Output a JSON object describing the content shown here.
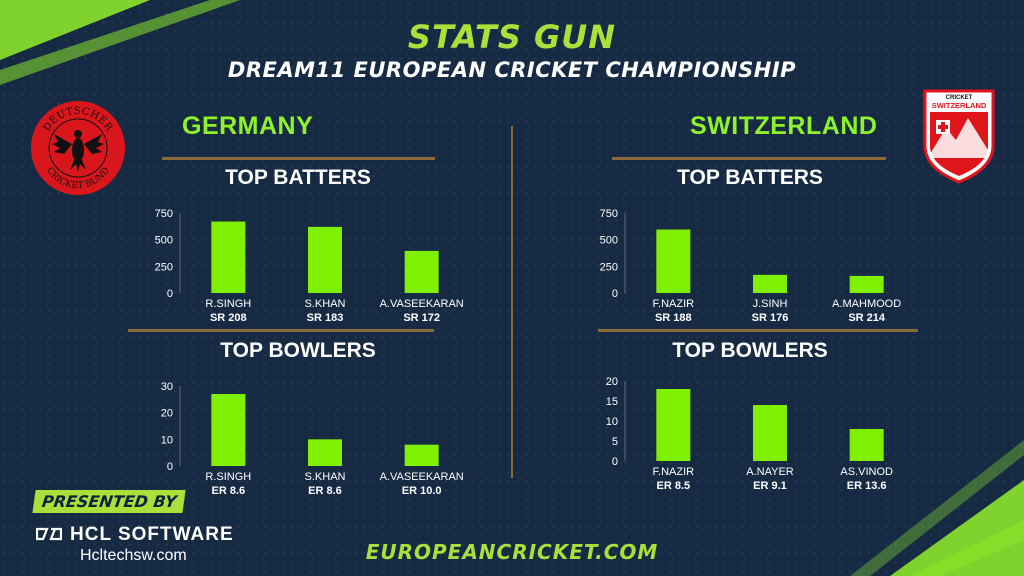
{
  "header": {
    "title": "STATS GUN",
    "subtitle": "DREAM11 EUROPEAN CRICKET CHAMPIONSHIP"
  },
  "teams": {
    "left": {
      "name": "GERMANY",
      "logo_text_top": "DEUTSCHER",
      "logo_text_bottom": "CRICKET BUND"
    },
    "right": {
      "name": "SWITZERLAND",
      "logo_text_top": "CRICKET",
      "logo_text_bottom": "SWITZERLAND"
    }
  },
  "sections": {
    "batters_title": "TOP BATTERS",
    "bowlers_title": "TOP BOWLERS"
  },
  "footer": {
    "presented_by": "PRESENTED BY",
    "sponsor": "HCL SOFTWARE",
    "sponsor_site": "Hcltechsw.com",
    "site": "EUROPEANCRICKET.COM"
  },
  "colors": {
    "background": "#172a44",
    "bar": "#7ff000",
    "accent_green": "#a8e13a",
    "divider": "#8a6a3b"
  },
  "chart_data": [
    {
      "id": "germany-batters",
      "type": "bar",
      "title": "TOP BATTERS",
      "categories": [
        "R.SINGH",
        "S.KHAN",
        "A.VASEEKARAN"
      ],
      "sublabels": [
        "SR 208",
        "SR 183",
        "SR 172"
      ],
      "values": [
        670,
        620,
        395
      ],
      "yticks": [
        0,
        250,
        500,
        750
      ],
      "ylim": [
        0,
        750
      ],
      "grid": false,
      "legend": "none"
    },
    {
      "id": "germany-bowlers",
      "type": "bar",
      "title": "TOP BOWLERS",
      "categories": [
        "R.SINGH",
        "S.KHAN",
        "A.VASEEKARAN"
      ],
      "sublabels": [
        "ER 8.6",
        "ER 8.6",
        "ER 10.0"
      ],
      "values": [
        27,
        10,
        8
      ],
      "yticks": [
        0,
        10,
        20,
        30
      ],
      "ylim": [
        0,
        30
      ],
      "grid": false,
      "legend": "none"
    },
    {
      "id": "switzerland-batters",
      "type": "bar",
      "title": "TOP BATTERS",
      "categories": [
        "F.NAZIR",
        "J.SINH",
        "A.MAHMOOD"
      ],
      "sublabels": [
        "SR 188",
        "SR 176",
        "SR 214"
      ],
      "values": [
        595,
        170,
        160
      ],
      "yticks": [
        0,
        250,
        500,
        750
      ],
      "ylim": [
        0,
        750
      ],
      "grid": false,
      "legend": "none"
    },
    {
      "id": "switzerland-bowlers",
      "type": "bar",
      "title": "TOP BOWLERS",
      "categories": [
        "F.NAZIR",
        "A.NAYER",
        "AS.VINOD"
      ],
      "sublabels": [
        "ER 8.5",
        "ER 9.1",
        "ER 13.6"
      ],
      "values": [
        18,
        14,
        8
      ],
      "yticks": [
        0,
        5,
        10,
        15,
        20
      ],
      "ylim": [
        0,
        20
      ],
      "grid": false,
      "legend": "none"
    }
  ]
}
